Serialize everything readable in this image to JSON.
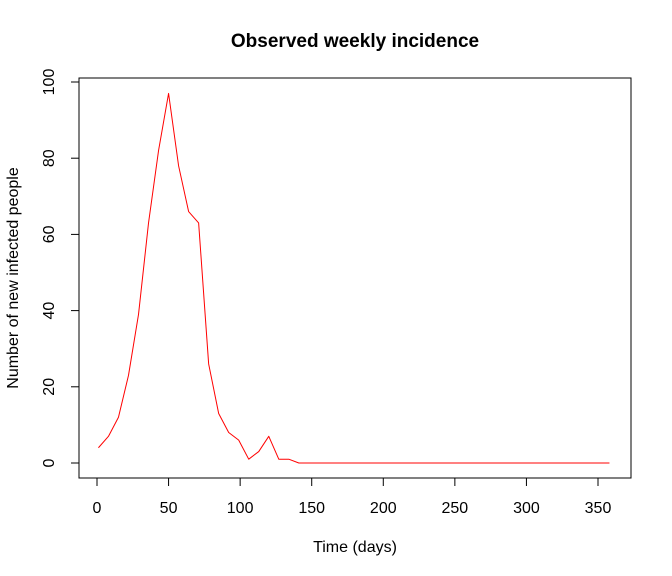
{
  "chart_data": {
    "type": "line",
    "title": "Observed weekly incidence",
    "xlabel": "Time (days)",
    "ylabel": "Number of new infected people",
    "xlim": [
      0,
      360
    ],
    "ylim": [
      0,
      100
    ],
    "x_ticks": [
      0,
      50,
      100,
      150,
      200,
      250,
      300,
      350
    ],
    "y_ticks": [
      0,
      20,
      40,
      60,
      80,
      100
    ],
    "grid": false,
    "series": [
      {
        "color": "#ff0000",
        "x": [
          1,
          8,
          15,
          22,
          29,
          36,
          43,
          50,
          57,
          64,
          71,
          78,
          85,
          92,
          99,
          106,
          113,
          120,
          127,
          134,
          141,
          148,
          155,
          162,
          169,
          176,
          183,
          190,
          197,
          204,
          211,
          218,
          225,
          232,
          239,
          246,
          253,
          260,
          267,
          274,
          281,
          288,
          295,
          302,
          309,
          316,
          323,
          330,
          337,
          344,
          351,
          358
        ],
        "values": [
          4,
          7,
          12,
          23,
          39,
          63,
          82,
          97,
          78,
          66,
          63,
          26,
          13,
          8,
          6,
          1,
          3,
          7,
          1,
          1,
          0,
          0,
          0,
          0,
          0,
          0,
          0,
          0,
          0,
          0,
          0,
          0,
          0,
          0,
          0,
          0,
          0,
          0,
          0,
          0,
          0,
          0,
          0,
          0,
          0,
          0,
          0,
          0,
          0,
          0,
          0,
          0
        ]
      }
    ]
  }
}
